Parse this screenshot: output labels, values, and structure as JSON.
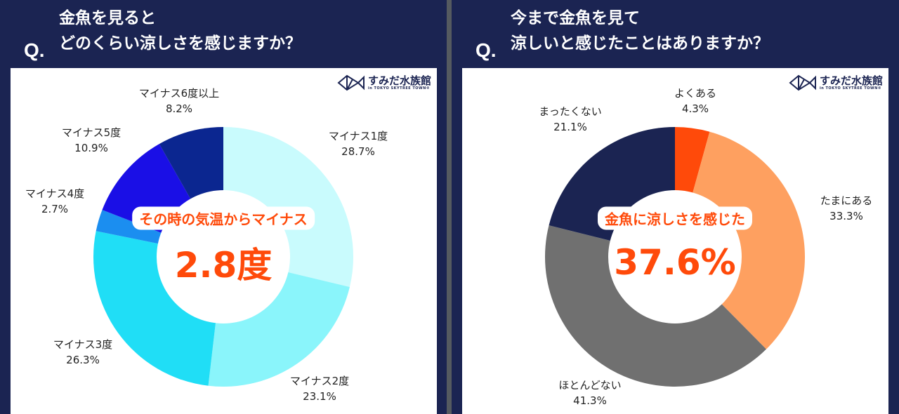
{
  "logo": {
    "name": "すみだ水族館",
    "sub": "in TOKYO SKYTREE TOWN®"
  },
  "chart_data": [
    {
      "type": "pie",
      "donut": true,
      "question": {
        "mark": "Q.",
        "line1": "金魚を見ると",
        "line2": "どのくらい涼しさを感じますか？"
      },
      "center": {
        "label": "その時の気温からマイナス",
        "value": "2.8度"
      },
      "slices": [
        {
          "label": "マイナス1度",
          "value": 28.7,
          "text": "28.7%",
          "color": "#c9fbfd"
        },
        {
          "label": "マイナス2度",
          "value": 23.1,
          "text": "23.1%",
          "color": "#8af5fb"
        },
        {
          "label": "マイナス3度",
          "value": 26.3,
          "text": "26.3%",
          "color": "#20def6"
        },
        {
          "label": "マイナス4度",
          "value": 2.7,
          "text": "2.7%",
          "color": "#1b8ef0"
        },
        {
          "label": "マイナス5度",
          "value": 10.9,
          "text": "10.9%",
          "color": "#1a0fe6"
        },
        {
          "label": "マイナス6度以上",
          "value": 8.2,
          "text": "8.2%",
          "color": "#0b2690"
        }
      ]
    },
    {
      "type": "pie",
      "donut": true,
      "question": {
        "mark": "Q.",
        "line1": "今まで金魚を見て",
        "line2": "涼しいと感じたことはありますか？"
      },
      "center": {
        "label": "金魚に涼しさを感じた",
        "value": "37.6%"
      },
      "slices": [
        {
          "label": "よくある",
          "value": 4.3,
          "text": "4.3%",
          "color": "#ff4a0a"
        },
        {
          "label": "たまにある",
          "value": 33.3,
          "text": "33.3%",
          "color": "#fea060"
        },
        {
          "label": "ほとんどない",
          "value": 41.3,
          "text": "41.3%",
          "color": "#707070"
        },
        {
          "label": "まったくない",
          "value": 21.1,
          "text": "21.1%",
          "color": "#1b2452"
        }
      ]
    }
  ]
}
